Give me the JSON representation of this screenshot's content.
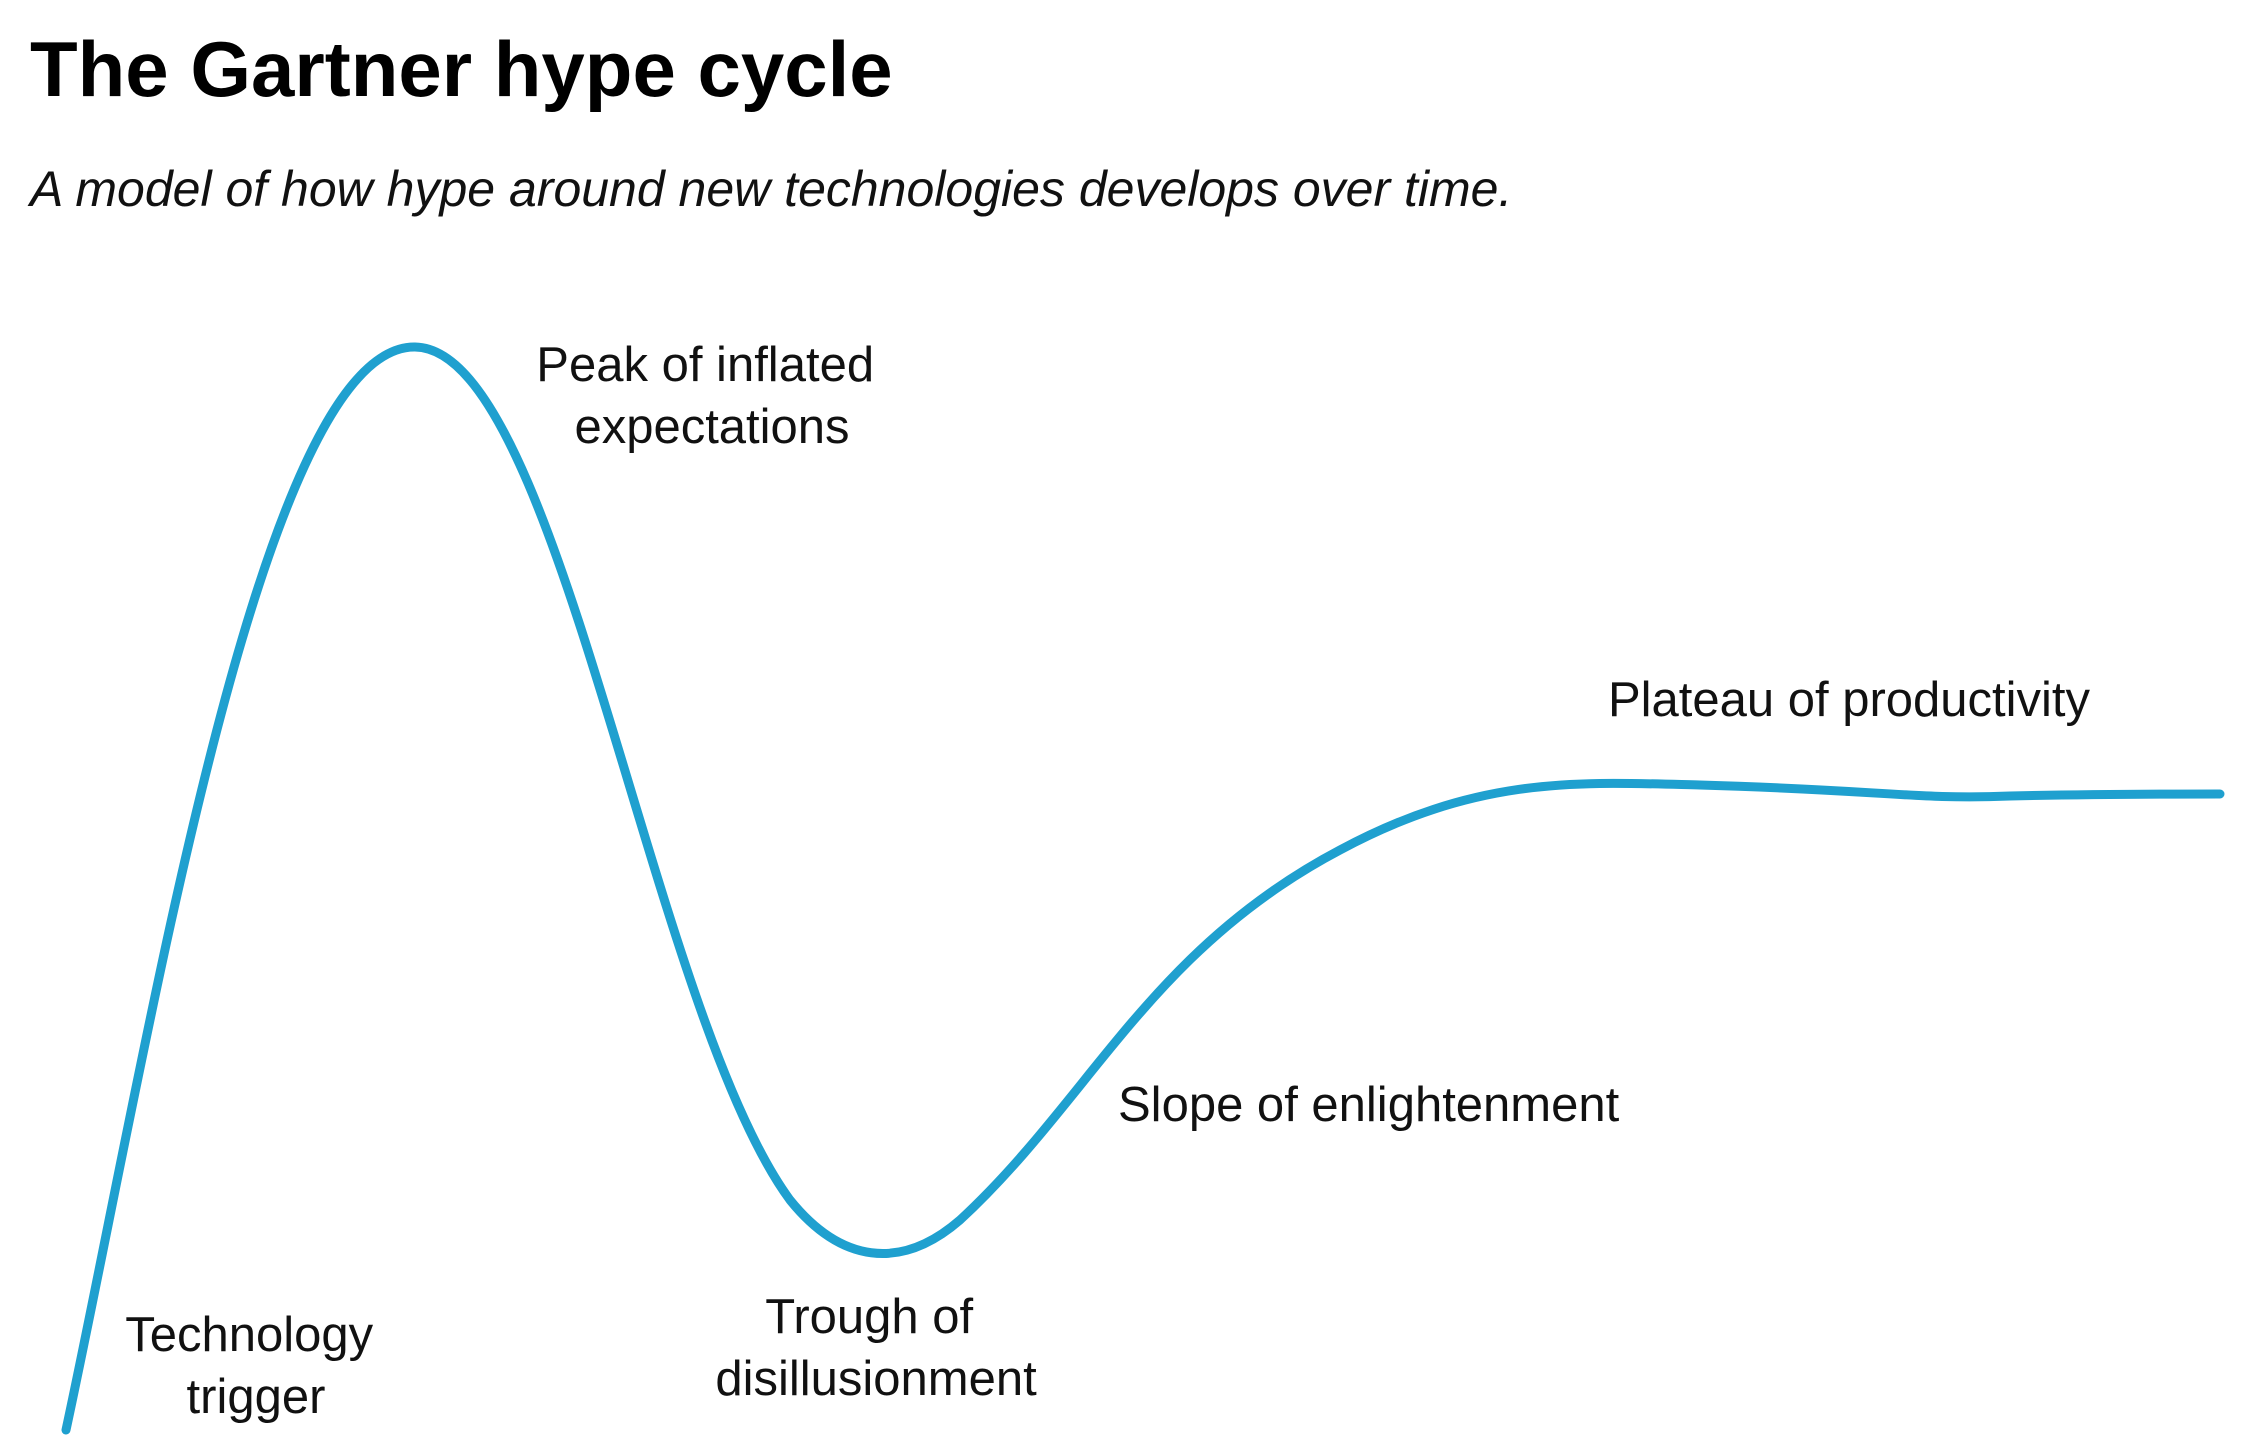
{
  "title": "The Gartner hype cycle",
  "subtitle": "A model of how hype around new technologies develops over time.",
  "curve_color": "#1fa0cf",
  "phases": [
    {
      "lines": [
        "Technology",
        "trigger"
      ]
    },
    {
      "lines": [
        "Peak of inflated",
        "expectations"
      ]
    },
    {
      "lines": [
        "Trough of",
        "disillusionment"
      ]
    },
    {
      "lines": [
        "Slope of enlightenment"
      ]
    },
    {
      "lines": [
        "Plateau of productivity"
      ]
    }
  ]
}
